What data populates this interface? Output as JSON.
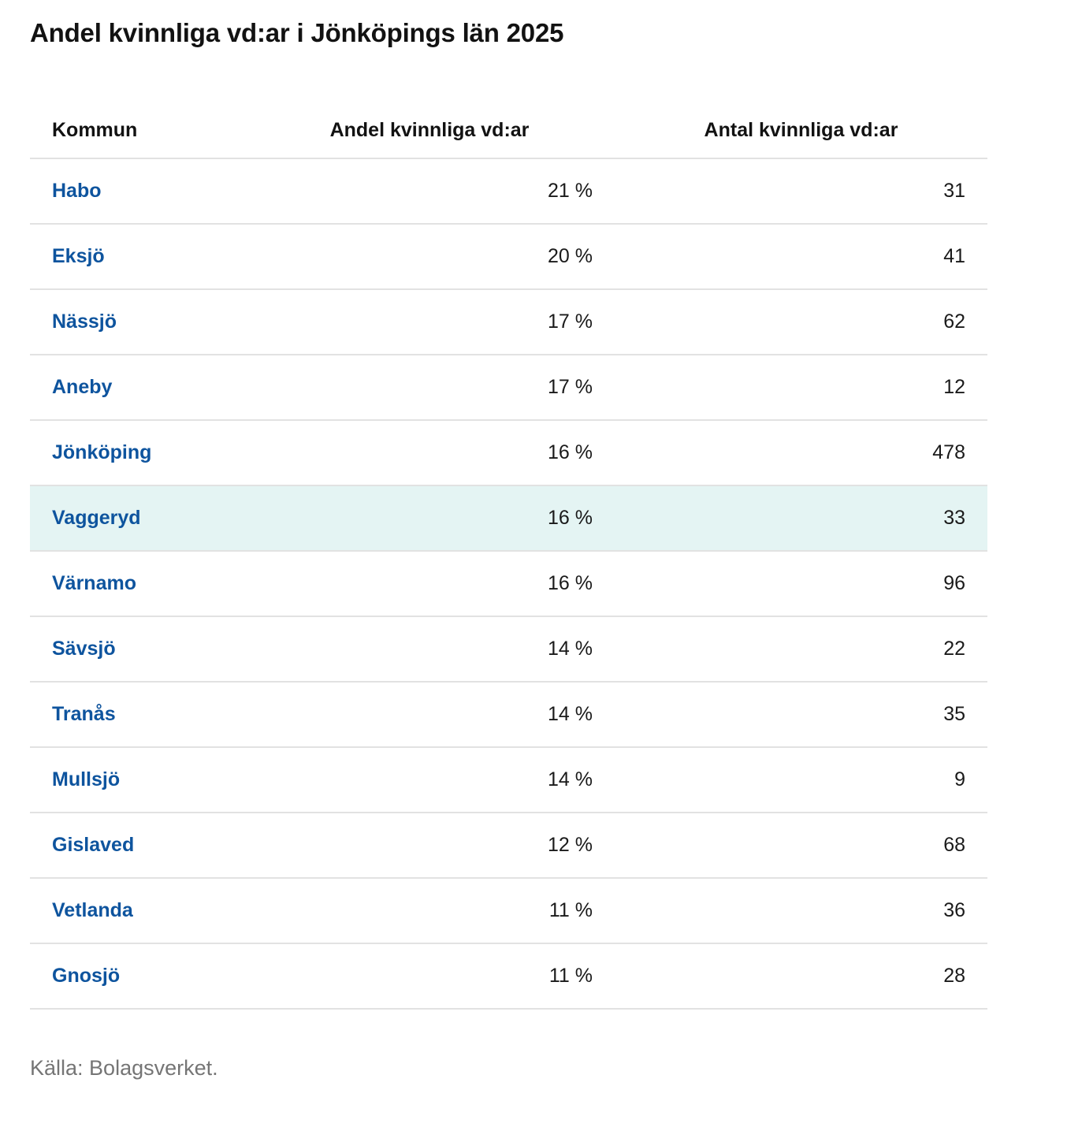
{
  "page": {
    "title": "Andel kvinnliga vd:ar i Jönköpings län 2025",
    "source": "Källa: Bolagsverket."
  },
  "chart_data": {
    "type": "table",
    "title": "Andel kvinnliga vd:ar i Jönköpings län 2025",
    "columns": [
      "Kommun",
      "Andel kvinnliga vd:ar",
      "Antal kvinnliga vd:ar"
    ],
    "rows": [
      {
        "kommun": "Habo",
        "andel": "21 %",
        "antal": "31",
        "highlighted": false
      },
      {
        "kommun": "Eksjö",
        "andel": "20 %",
        "antal": "41",
        "highlighted": false
      },
      {
        "kommun": "Nässjö",
        "andel": "17 %",
        "antal": "62",
        "highlighted": false
      },
      {
        "kommun": "Aneby",
        "andel": "17 %",
        "antal": "12",
        "highlighted": false
      },
      {
        "kommun": "Jönköping",
        "andel": "16 %",
        "antal": "478",
        "highlighted": false
      },
      {
        "kommun": "Vaggeryd",
        "andel": "16 %",
        "antal": "33",
        "highlighted": true
      },
      {
        "kommun": "Värnamo",
        "andel": "16 %",
        "antal": "96",
        "highlighted": false
      },
      {
        "kommun": "Sävsjö",
        "andel": "14 %",
        "antal": "22",
        "highlighted": false
      },
      {
        "kommun": "Tranås",
        "andel": "14 %",
        "antal": "35",
        "highlighted": false
      },
      {
        "kommun": "Mullsjö",
        "andel": "14 %",
        "antal": "9",
        "highlighted": false
      },
      {
        "kommun": "Gislaved",
        "andel": "12 %",
        "antal": "68",
        "highlighted": false
      },
      {
        "kommun": "Vetlanda",
        "andel": "11 %",
        "antal": "36",
        "highlighted": false
      },
      {
        "kommun": "Gnosjö",
        "andel": "11 %",
        "antal": "28",
        "highlighted": false
      }
    ],
    "highlighted_row": "Vaggeryd",
    "source": "Källa: Bolagsverket."
  },
  "colors": {
    "link_blue": "#0e549e",
    "highlight_bg": "#e4f4f3",
    "divider": "#e2e2e2",
    "text_dark": "#1a1a1a",
    "source_gray": "#757575",
    "page_bg": "#ffffff"
  }
}
